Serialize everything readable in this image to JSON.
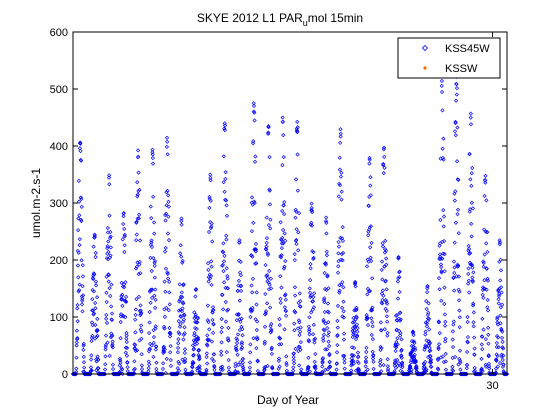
{
  "chart_data": {
    "type": "scatter",
    "title_main": "SKYE 2012 L1 PAR",
    "title_sub": "u",
    "title_rest": "mol 15min",
    "xlabel": "Day of Year",
    "ylabel": "umol.m-2.s-1",
    "xlim": [
      1,
      31
    ],
    "ylim": [
      0,
      600
    ],
    "x_tick_labels": [
      "30"
    ],
    "x_ticks": [
      30
    ],
    "y_ticks": [
      0,
      100,
      200,
      300,
      400,
      500,
      600
    ],
    "y_tick_labels": [
      "0",
      "100",
      "200",
      "300",
      "400",
      "500",
      "600"
    ],
    "grid": false,
    "legend_position": "top-right",
    "series": [
      {
        "name": "KSS45W",
        "color": "#0000ff",
        "marker": "diamond",
        "daily_peaks": [
          420,
          250,
          350,
          285,
          400,
          405,
          415,
          275,
          150,
          350,
          445,
          240,
          480,
          440,
          455,
          445,
          300,
          275,
          435,
          165,
          385,
          400,
          210,
          75,
          155,
          520,
          535,
          460,
          350,
          235,
          165
        ]
      },
      {
        "name": "KSSW",
        "color": "#ff6600",
        "marker": "point"
      }
    ]
  }
}
